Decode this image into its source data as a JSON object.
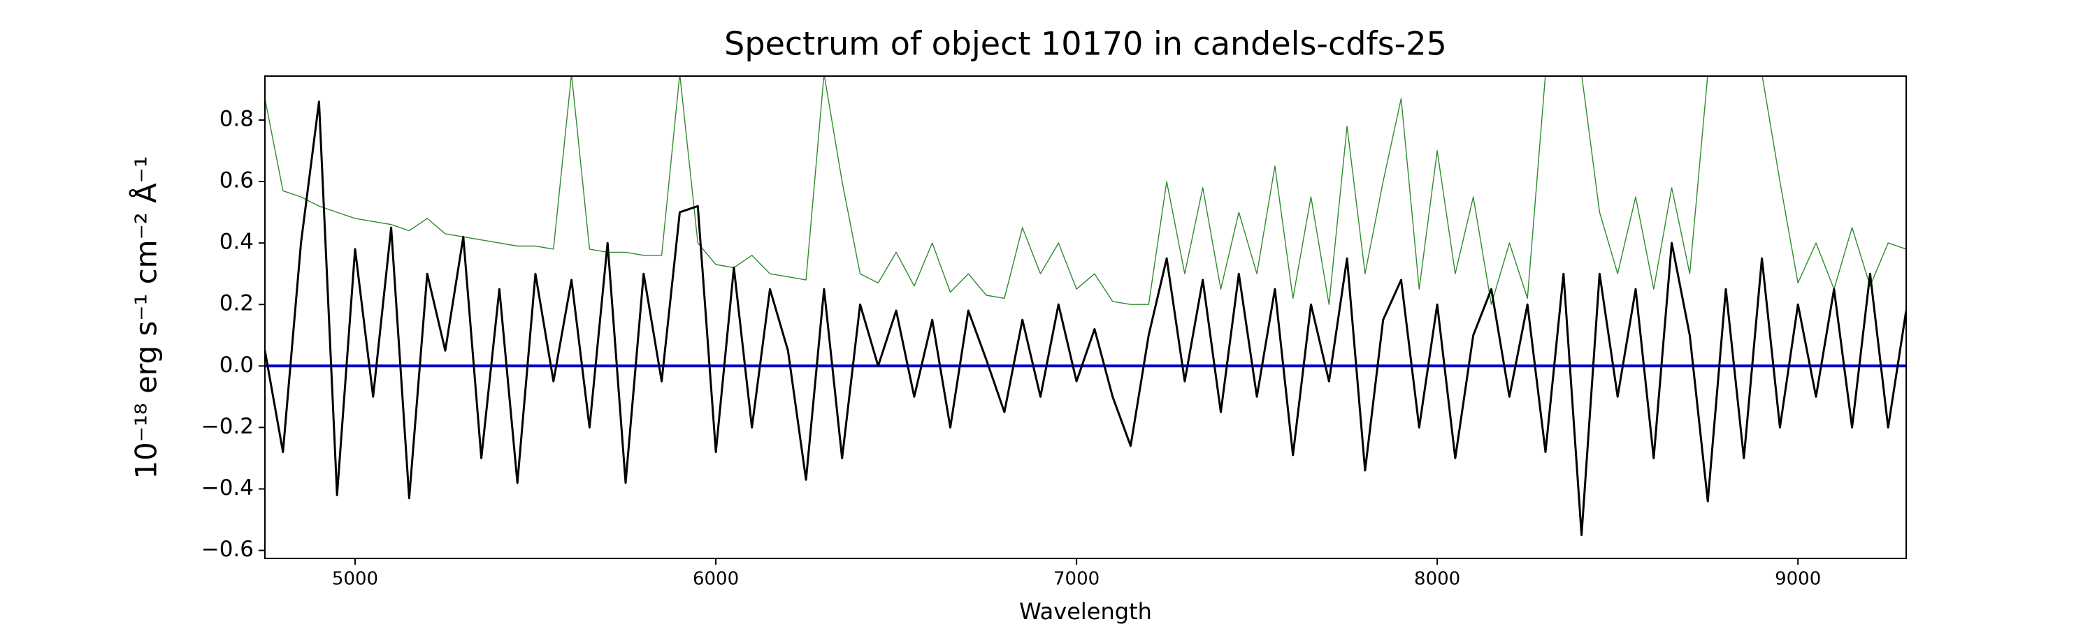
{
  "chart_data": {
    "type": "line",
    "title": "Spectrum of object 10170 in candels-cdfs-25",
    "xlabel": "Wavelength",
    "ylabel": "10⁻¹⁸ erg s⁻¹ cm⁻² Å⁻¹",
    "xlim": [
      4750,
      9300
    ],
    "ylim": [
      -0.626,
      0.943
    ],
    "xticks": [
      5000,
      6000,
      7000,
      8000,
      9000
    ],
    "yticks": [
      {
        "value": -0.6,
        "label": "−0.6"
      },
      {
        "value": -0.4,
        "label": "−0.4"
      },
      {
        "value": -0.2,
        "label": "−0.2"
      },
      {
        "value": 0,
        "label": "0.0"
      },
      0.2,
      0.4,
      0.6,
      0.8
    ],
    "x": [
      4750,
      4800,
      4850,
      4900,
      4950,
      5000,
      5050,
      5100,
      5150,
      5200,
      5250,
      5300,
      5350,
      5400,
      5450,
      5500,
      5550,
      5600,
      5650,
      5700,
      5750,
      5800,
      5850,
      5900,
      5950,
      6000,
      6050,
      6100,
      6150,
      6200,
      6250,
      6300,
      6350,
      6400,
      6450,
      6500,
      6550,
      6600,
      6650,
      6700,
      6750,
      6800,
      6850,
      6900,
      6950,
      7000,
      7050,
      7100,
      7150,
      7200,
      7250,
      7300,
      7350,
      7400,
      7450,
      7500,
      7550,
      7600,
      7650,
      7700,
      7750,
      7800,
      7850,
      7900,
      7950,
      8000,
      8050,
      8100,
      8150,
      8200,
      8250,
      8300,
      8350,
      8400,
      8450,
      8500,
      8550,
      8600,
      8650,
      8700,
      8750,
      8800,
      8850,
      8900,
      8950,
      9000,
      9050,
      9100,
      9150,
      9200,
      9250,
      9300
    ],
    "series": [
      {
        "color": "#2e8b2e",
        "width": 1.4,
        "values": [
          0.87,
          0.57,
          0.55,
          0.52,
          0.5,
          0.48,
          0.47,
          0.46,
          0.44,
          0.48,
          0.43,
          0.42,
          0.41,
          0.4,
          0.39,
          0.39,
          0.38,
          0.95,
          0.38,
          0.37,
          0.37,
          0.36,
          0.36,
          0.95,
          0.4,
          0.33,
          0.32,
          0.36,
          0.3,
          0.29,
          0.28,
          0.95,
          0.6,
          0.3,
          0.27,
          0.37,
          0.26,
          0.4,
          0.24,
          0.3,
          0.23,
          0.22,
          0.45,
          0.3,
          0.4,
          0.25,
          0.3,
          0.21,
          0.2,
          0.2,
          0.6,
          0.3,
          0.58,
          0.25,
          0.5,
          0.3,
          0.65,
          0.22,
          0.55,
          0.2,
          0.78,
          0.3,
          0.6,
          0.87,
          0.25,
          0.7,
          0.3,
          0.55,
          0.2,
          0.4,
          0.22,
          0.95,
          0.95,
          0.95,
          0.5,
          0.3,
          0.55,
          0.25,
          0.58,
          0.3,
          0.95,
          0.95,
          0.95,
          0.95,
          0.6,
          0.27,
          0.4,
          0.25,
          0.45,
          0.26,
          0.4,
          0.38
        ]
      },
      {
        "color": "#0000cc",
        "width": 4,
        "values": [
          0,
          0,
          0,
          0,
          0,
          0,
          0,
          0,
          0,
          0,
          0,
          0,
          0,
          0,
          0,
          0,
          0,
          0,
          0,
          0,
          0,
          0,
          0,
          0,
          0,
          0,
          0,
          0,
          0,
          0,
          0,
          0,
          0,
          0,
          0,
          0,
          0,
          0,
          0,
          0,
          0,
          0,
          0,
          0,
          0,
          0,
          0,
          0,
          0,
          0,
          0,
          0,
          0,
          0,
          0,
          0,
          0,
          0,
          0,
          0,
          0,
          0,
          0,
          0,
          0,
          0,
          0,
          0,
          0,
          0,
          0,
          0,
          0,
          0,
          0,
          0,
          0,
          0,
          0,
          0,
          0,
          0,
          0,
          0,
          0,
          0,
          0,
          0,
          0,
          0,
          0,
          0
        ]
      },
      {
        "color": "#000000",
        "width": 3,
        "values": [
          0.05,
          -0.28,
          0.4,
          0.86,
          -0.42,
          0.38,
          -0.1,
          0.45,
          -0.43,
          0.3,
          0.05,
          0.42,
          -0.3,
          0.25,
          -0.38,
          0.3,
          -0.05,
          0.28,
          -0.2,
          0.4,
          -0.38,
          0.3,
          -0.05,
          0.5,
          0.52,
          -0.28,
          0.32,
          -0.2,
          0.25,
          0.05,
          -0.37,
          0.25,
          -0.3,
          0.2,
          0,
          0.18,
          -0.1,
          0.15,
          -0.2,
          0.18,
          0.02,
          -0.15,
          0.15,
          -0.1,
          0.2,
          -0.05,
          0.12,
          -0.1,
          -0.26,
          0.1,
          0.35,
          -0.05,
          0.28,
          -0.15,
          0.3,
          -0.1,
          0.25,
          -0.29,
          0.2,
          -0.05,
          0.35,
          -0.34,
          0.15,
          0.28,
          -0.2,
          0.2,
          -0.3,
          0.1,
          0.25,
          -0.1,
          0.2,
          -0.28,
          0.3,
          -0.55,
          0.3,
          -0.1,
          0.25,
          -0.3,
          0.4,
          0.1,
          -0.44,
          0.25,
          -0.3,
          0.35,
          -0.2,
          0.2,
          -0.1,
          0.25,
          -0.2,
          0.3,
          -0.2,
          0.18
        ]
      }
    ]
  }
}
